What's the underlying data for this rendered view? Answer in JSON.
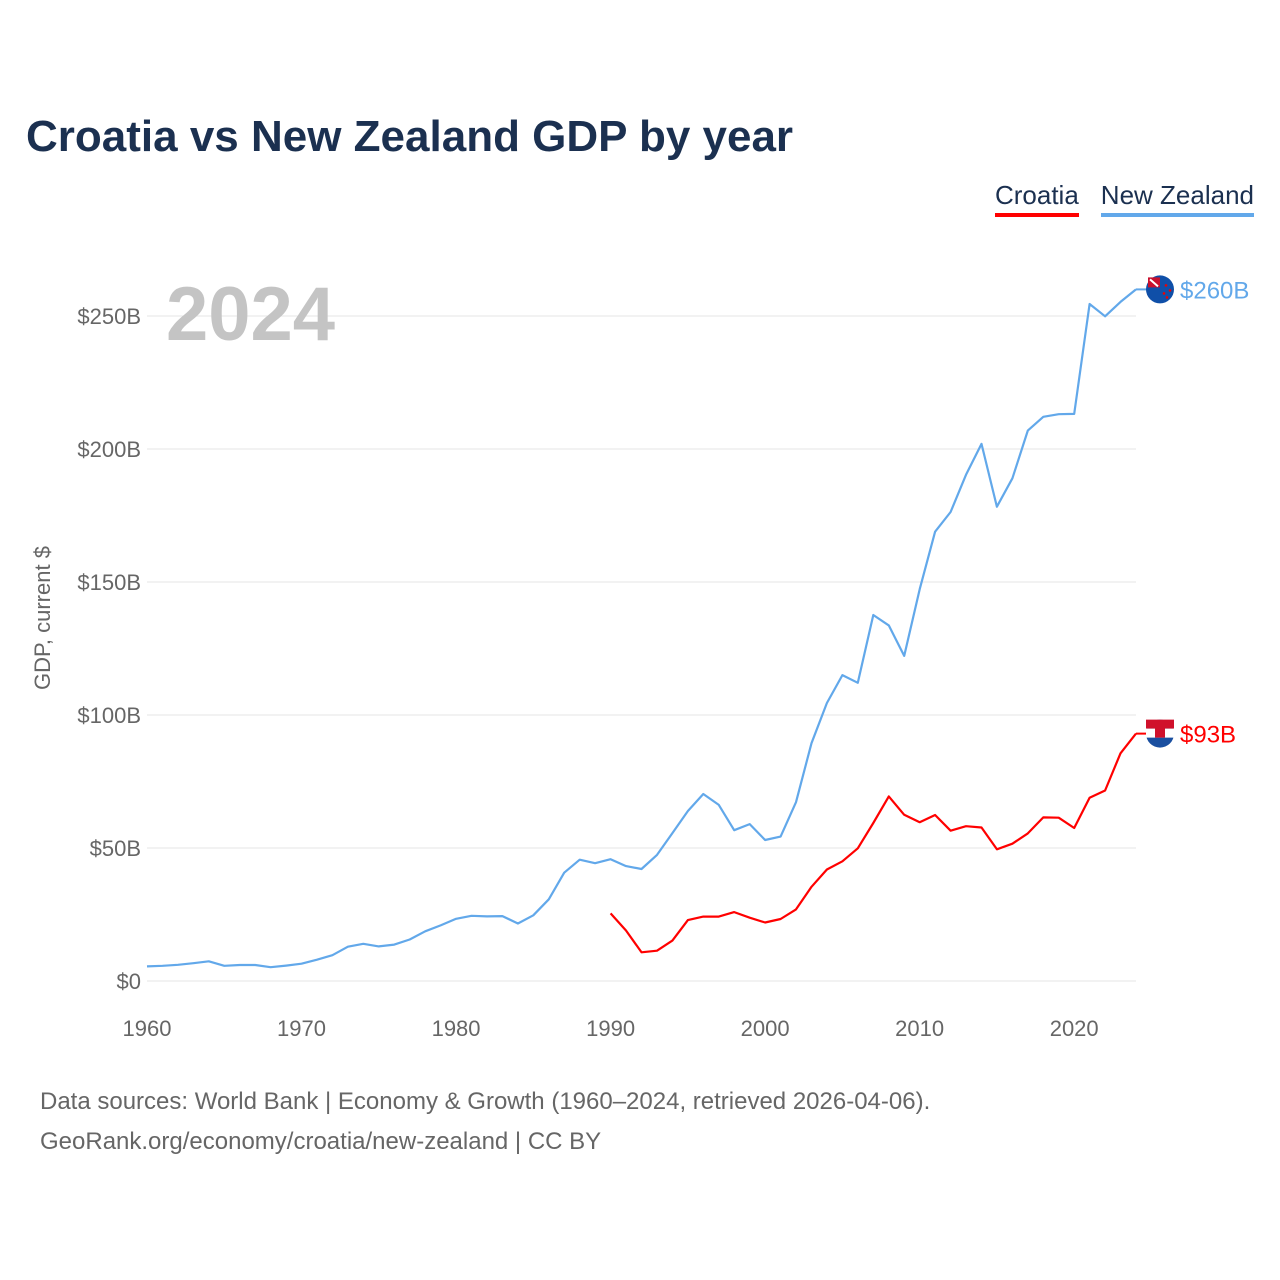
{
  "title": "Croatia vs New Zealand GDP by year",
  "legend": [
    "Croatia",
    "New Zealand"
  ],
  "year_label": "2024",
  "sources": [
    "Data sources: World Bank | Economy & Growth (1960–2024, retrieved 2026-04-06).",
    "GeoRank.org/economy/croatia/new-zealand | CC BY"
  ],
  "colors": {
    "Croatia": "#ff0000",
    "New Zealand": "#62a8ea"
  },
  "chart_data": {
    "type": "line",
    "title": "Croatia vs New Zealand GDP by year",
    "xlabel": "",
    "ylabel": "GDP, current $",
    "xlim": [
      1960,
      2024
    ],
    "ylim": [
      0,
      260
    ],
    "x_ticks": [
      1960,
      1970,
      1980,
      1990,
      2000,
      2010,
      2020
    ],
    "x_tick_labels": [
      "1960",
      "1970",
      "1980",
      "1990",
      "2000",
      "2010",
      "2020"
    ],
    "y_ticks": [
      0,
      50,
      100,
      150,
      200,
      250
    ],
    "y_tick_labels": [
      "$0",
      "$50B",
      "$100B",
      "$150B",
      "$200B",
      "$250B"
    ],
    "grid": true,
    "legend_position": "top-right",
    "series": [
      {
        "name": "Croatia",
        "end_label": "$93B",
        "x_start": 1990,
        "values": [
          25.4,
          19.0,
          10.8,
          11.4,
          15.2,
          22.9,
          24.2,
          24.2,
          25.9,
          23.8,
          22.0,
          23.3,
          26.9,
          35.4,
          41.9,
          45.0,
          49.9,
          59.4,
          69.4,
          62.5,
          59.7,
          62.4,
          56.5,
          58.2,
          57.7,
          49.5,
          51.6,
          55.5,
          61.5,
          61.4,
          57.5,
          68.9,
          71.6,
          85.6,
          93.0
        ]
      },
      {
        "name": "New Zealand",
        "end_label": "$260B",
        "x_start": 1960,
        "values": [
          5.5,
          5.7,
          6.1,
          6.7,
          7.4,
          5.7,
          6.0,
          6.0,
          5.2,
          5.8,
          6.5,
          8.0,
          9.7,
          12.9,
          14.0,
          13.0,
          13.7,
          15.6,
          18.7,
          20.9,
          23.4,
          24.5,
          24.3,
          24.4,
          21.6,
          24.7,
          30.7,
          40.7,
          45.6,
          44.3,
          45.8,
          43.2,
          42.1,
          47.4,
          55.6,
          63.9,
          70.3,
          66.2,
          56.7,
          59.0,
          53.0,
          54.3,
          67.2,
          89.4,
          104.5,
          115.0,
          112.1,
          137.6,
          133.7,
          122.2,
          147.3,
          168.9,
          176.3,
          190.3,
          201.9,
          178.3,
          189.0,
          206.9,
          212.1,
          213.1,
          213.2,
          254.5,
          249.9,
          255.3,
          260.0
        ]
      }
    ]
  }
}
